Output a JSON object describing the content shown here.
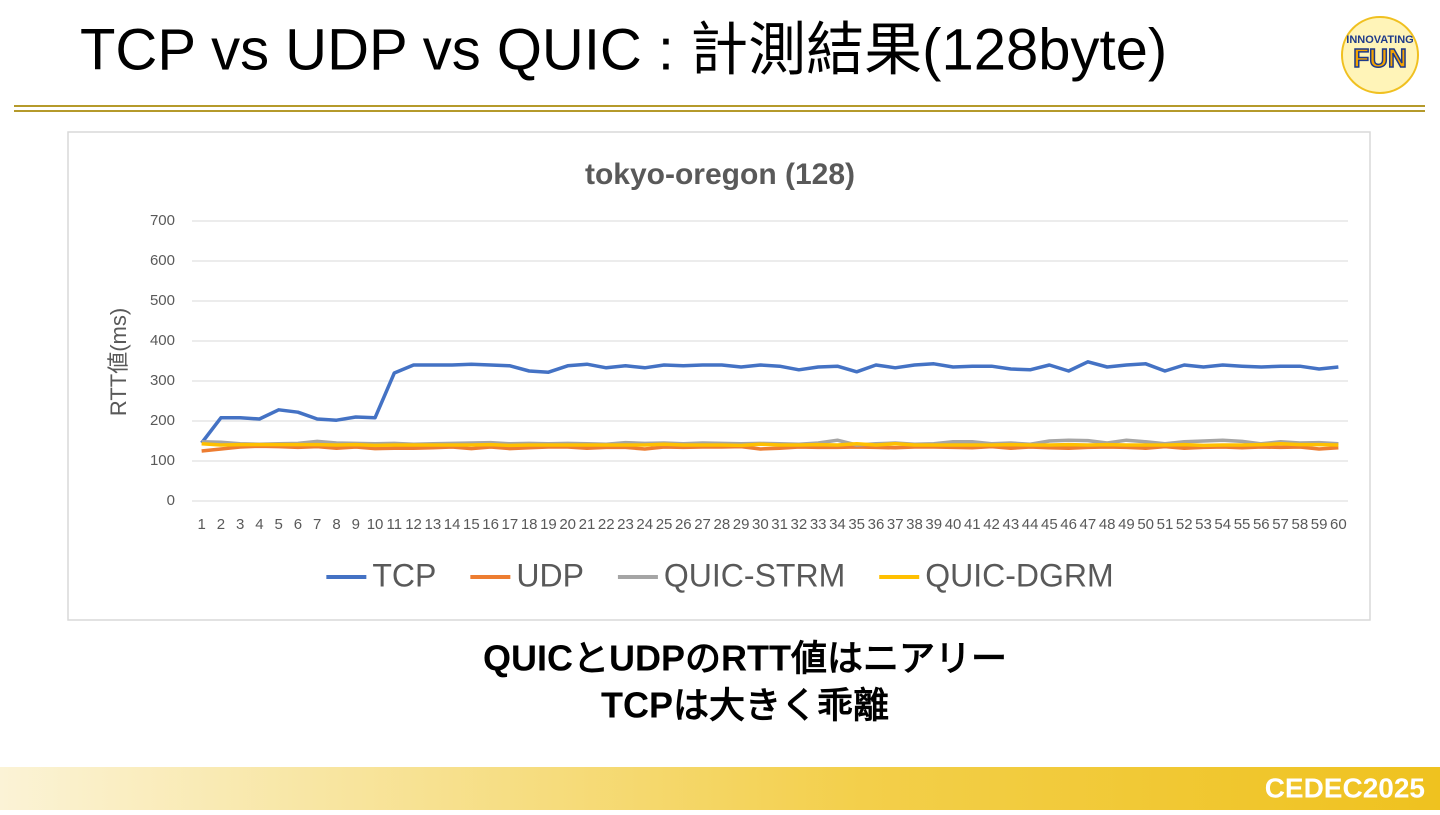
{
  "slide": {
    "title": "TCP vs UDP vs QUIC : 計測結果(128byte)",
    "conclusion": [
      "QUICとUDPのRTT値はニアリー",
      "TCPは大きく乖離"
    ],
    "logo": [
      "INNOVATING",
      "FUN"
    ],
    "footer": "CEDEC2025"
  },
  "chart_data": {
    "type": "line",
    "title": "tokyo-oregon (128)",
    "y_label": "RTT値(ms)",
    "categories": [
      "1",
      "2",
      "3",
      "4",
      "5",
      "6",
      "7",
      "8",
      "9",
      "10",
      "11",
      "12",
      "13",
      "14",
      "15",
      "16",
      "17",
      "18",
      "19",
      "20",
      "21",
      "22",
      "23",
      "24",
      "25",
      "26",
      "27",
      "28",
      "29",
      "30",
      "31",
      "32",
      "33",
      "34",
      "35",
      "36",
      "37",
      "38",
      "39",
      "40",
      "41",
      "42",
      "43",
      "44",
      "45",
      "46",
      "47",
      "48",
      "49",
      "50",
      "51",
      "52",
      "53",
      "54",
      "55",
      "56",
      "57",
      "58",
      "59",
      "60"
    ],
    "ylim": [
      0,
      700
    ],
    "yticks": [
      0,
      100,
      200,
      300,
      400,
      500,
      600,
      700
    ],
    "grid": true,
    "legend": "bottom",
    "series": [
      {
        "name": "TCP",
        "color": "#4472c4",
        "values": [
          145,
          208,
          208,
          205,
          228,
          222,
          205,
          202,
          210,
          208,
          320,
          340,
          340,
          340,
          342,
          340,
          338,
          325,
          322,
          338,
          342,
          333,
          338,
          333,
          340,
          338,
          340,
          340,
          335,
          340,
          337,
          328,
          335,
          337,
          323,
          340,
          333,
          340,
          343,
          335,
          337,
          337,
          330,
          328,
          340,
          325,
          348,
          335,
          340,
          343,
          325,
          340,
          335,
          340,
          337,
          335,
          337,
          337,
          330,
          335
        ]
      },
      {
        "name": "UDP",
        "color": "#ed7d31",
        "values": [
          125,
          130,
          135,
          137,
          136,
          134,
          136,
          132,
          135,
          131,
          132,
          132,
          133,
          135,
          131,
          135,
          131,
          133,
          135,
          135,
          132,
          134,
          134,
          130,
          135,
          134,
          135,
          135,
          136,
          130,
          132,
          135,
          134,
          134,
          135,
          134,
          133,
          135,
          135,
          134,
          133,
          136,
          132,
          135,
          133,
          132,
          134,
          135,
          134,
          132,
          136,
          132,
          134,
          135,
          133,
          135,
          134,
          135,
          130,
          133
        ]
      },
      {
        "name": "QUIC-STRM",
        "color": "#a5a5a5",
        "values": [
          148,
          147,
          143,
          142,
          143,
          144,
          149,
          145,
          144,
          143,
          144,
          142,
          143,
          144,
          145,
          146,
          143,
          144,
          143,
          144,
          143,
          142,
          146,
          144,
          145,
          143,
          145,
          144,
          143,
          144,
          143,
          142,
          145,
          152,
          140,
          143,
          145,
          142,
          143,
          148,
          148,
          143,
          145,
          142,
          150,
          152,
          151,
          145,
          152,
          148,
          143,
          148,
          150,
          152,
          149,
          143,
          148,
          145,
          146,
          143
        ]
      },
      {
        "name": "QUIC-DGRM",
        "color": "#ffc000",
        "values": [
          143,
          140,
          141,
          141,
          141,
          141,
          141,
          140,
          141,
          139,
          140,
          140,
          140,
          140,
          140,
          141,
          139,
          140,
          140,
          140,
          140,
          140,
          140,
          140,
          142,
          140,
          140,
          140,
          139,
          142,
          140,
          140,
          141,
          140,
          143,
          140,
          143,
          140,
          140,
          140,
          140,
          140,
          141,
          140,
          140,
          141,
          140,
          141,
          140,
          140,
          140,
          141,
          139,
          140,
          140,
          141,
          143,
          141,
          141,
          140
        ]
      }
    ]
  }
}
